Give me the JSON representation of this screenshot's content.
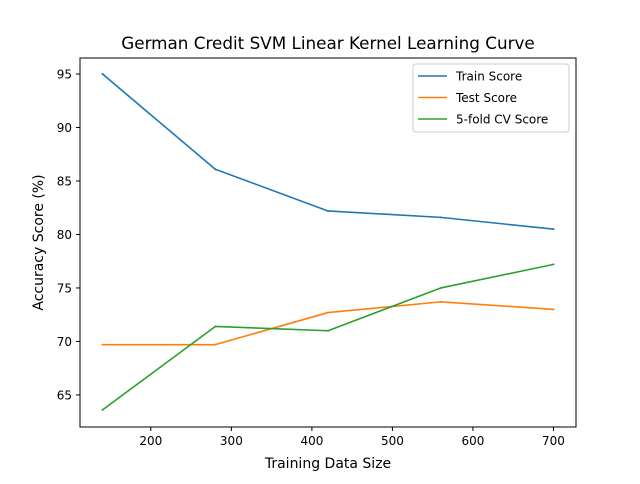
{
  "chart_data": {
    "type": "line",
    "title": "German Credit SVM Linear Kernel Learning Curve",
    "xlabel": "Training Data Size",
    "ylabel": "Accuracy Score (%)",
    "x": [
      140,
      280,
      420,
      560,
      700
    ],
    "xlim": [
      112,
      728
    ],
    "ylim": [
      62,
      96.5
    ],
    "xticks": [
      200,
      300,
      400,
      500,
      600,
      700
    ],
    "yticks": [
      65,
      70,
      75,
      80,
      85,
      90,
      95
    ],
    "grid": false,
    "legend_position": "upper right",
    "series": [
      {
        "name": "Train Score",
        "color": "#1f77b4",
        "values": [
          95.0,
          86.1,
          82.2,
          81.6,
          80.5
        ]
      },
      {
        "name": "Test Score",
        "color": "#ff7f0e",
        "values": [
          69.7,
          69.7,
          72.7,
          73.7,
          73.0
        ]
      },
      {
        "name": "5-fold CV Score",
        "color": "#2ca02c",
        "values": [
          63.6,
          71.4,
          71.0,
          75.0,
          77.2
        ]
      }
    ]
  }
}
